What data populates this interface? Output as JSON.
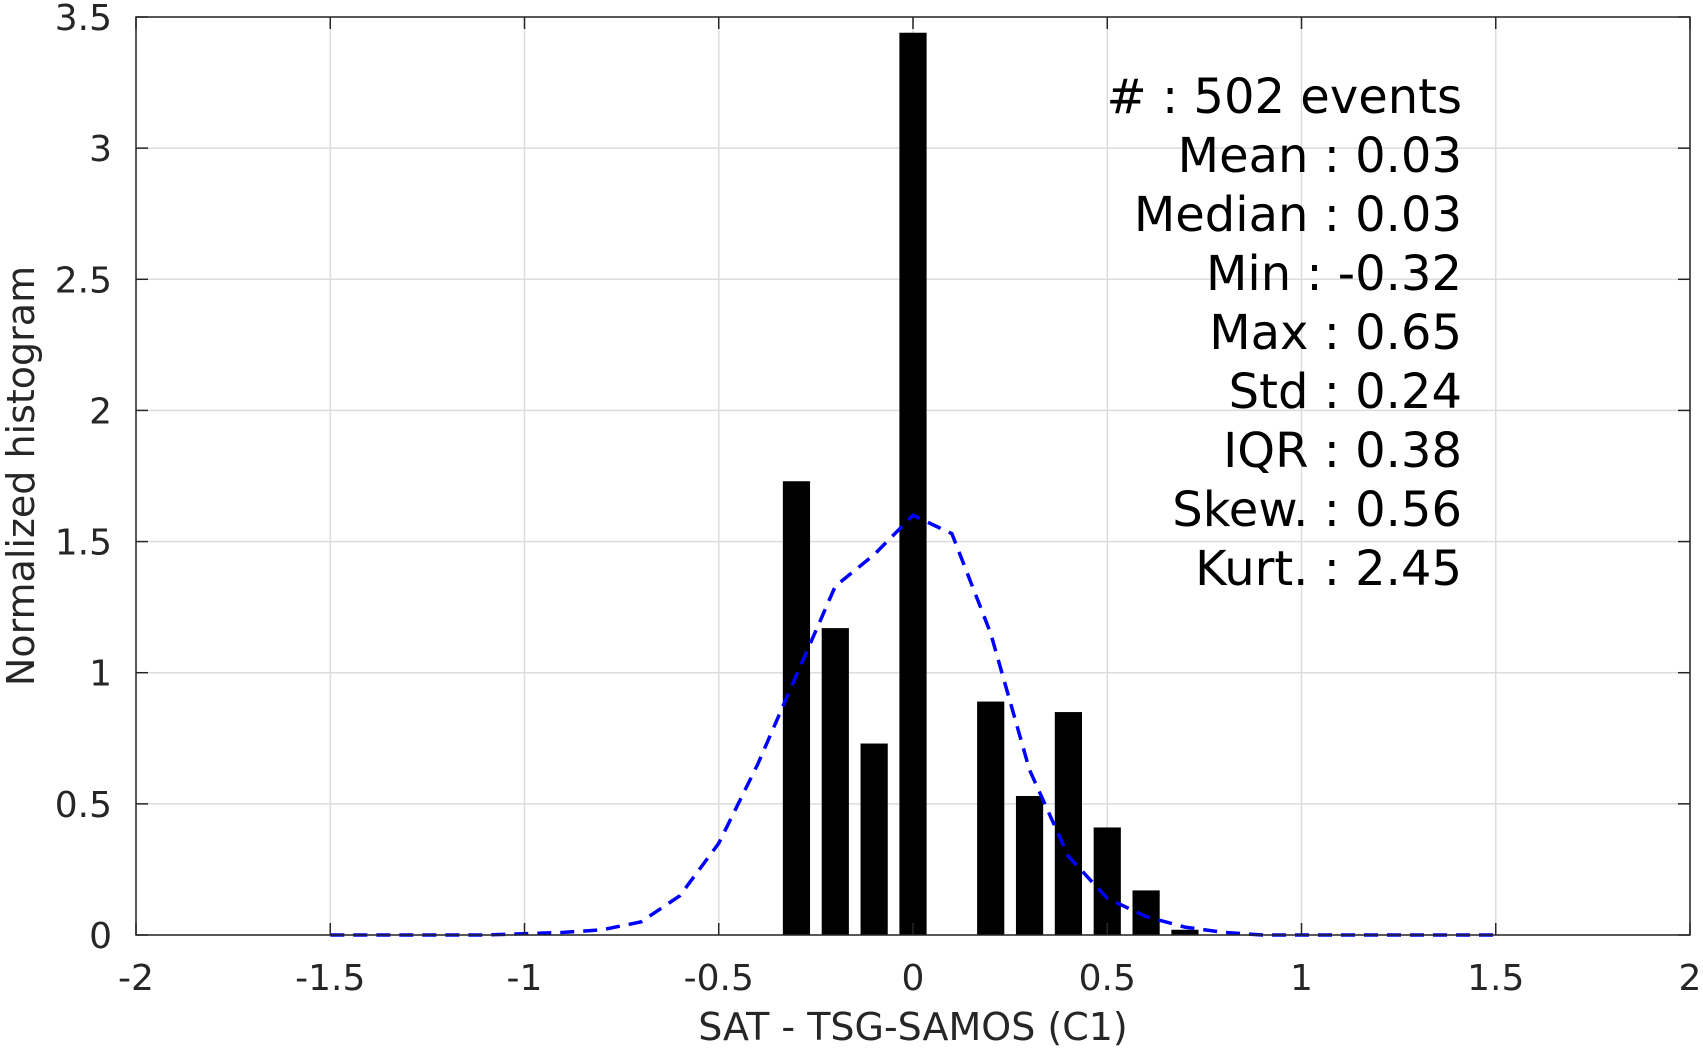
{
  "chart_data": {
    "type": "bar",
    "xlabel": "SAT - TSG-SAMOS (C1)",
    "ylabel": "Normalized histogram",
    "xlim": [
      -2,
      2
    ],
    "ylim": [
      0,
      3.5
    ],
    "grid": true,
    "x_ticks": [
      "-2",
      "-1.5",
      "-1",
      "-0.5",
      "0",
      "0.5",
      "1",
      "1.5",
      "2"
    ],
    "y_ticks": [
      "0",
      "0.5",
      "1",
      "1.5",
      "2",
      "2.5",
      "3",
      "3.5"
    ],
    "bar_width": 0.07,
    "bar_color": "#000000",
    "bars": [
      {
        "x": -0.3,
        "y": 1.73
      },
      {
        "x": -0.2,
        "y": 1.17
      },
      {
        "x": -0.1,
        "y": 0.73
      },
      {
        "x": 0.0,
        "y": 3.44
      },
      {
        "x": 0.2,
        "y": 0.89
      },
      {
        "x": 0.3,
        "y": 0.53
      },
      {
        "x": 0.4,
        "y": 0.85
      },
      {
        "x": 0.5,
        "y": 0.41
      },
      {
        "x": 0.6,
        "y": 0.17
      },
      {
        "x": 0.7,
        "y": 0.02
      }
    ],
    "fit_curve": {
      "style": "dashed",
      "color": "#0000ff",
      "x": [
        -1.5,
        -1.3,
        -1.1,
        -0.9,
        -0.8,
        -0.7,
        -0.6,
        -0.5,
        -0.4,
        -0.3,
        -0.2,
        -0.1,
        0.0,
        0.1,
        0.2,
        0.3,
        0.4,
        0.5,
        0.6,
        0.7,
        0.8,
        0.9,
        1.1,
        1.3,
        1.5
      ],
      "y": [
        0.0,
        0.0,
        0.0,
        0.01,
        0.02,
        0.05,
        0.15,
        0.35,
        0.65,
        0.99,
        1.33,
        1.45,
        1.6,
        1.53,
        1.15,
        0.63,
        0.3,
        0.14,
        0.07,
        0.03,
        0.01,
        0.0,
        0.0,
        0.0,
        0.0
      ]
    },
    "annotations": [
      "#  : 502 events",
      "Mean : 0.03",
      "Median : 0.03",
      "Min : -0.32",
      "Max : 0.65",
      "Std : 0.24",
      "IQR : 0.38",
      "Skew. : 0.56",
      "Kurt. : 2.45"
    ]
  }
}
